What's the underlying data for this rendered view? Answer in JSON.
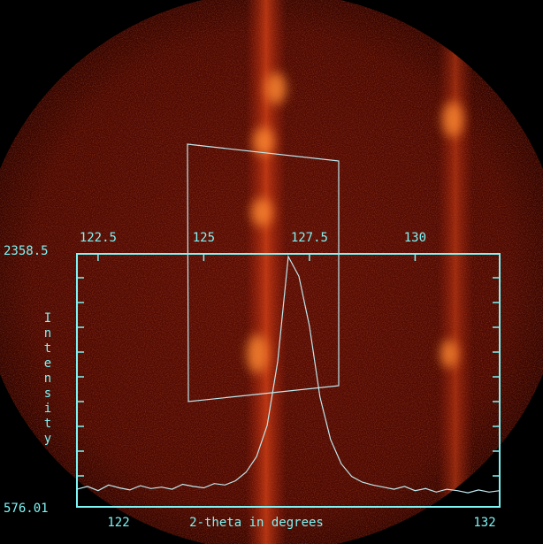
{
  "chart_data": {
    "type": "line",
    "x_label": "2-theta in degrees",
    "y_label": "Intensity",
    "xlim": [
      122,
      132
    ],
    "ylim": [
      576.01,
      2358.5
    ],
    "xticks": [
      122.5,
      125,
      127.5,
      130
    ],
    "color": "#bfe9ee",
    "x": [
      122,
      122.25,
      122.5,
      122.75,
      123,
      123.25,
      123.5,
      123.75,
      124,
      124.25,
      124.5,
      124.75,
      125,
      125.25,
      125.5,
      125.75,
      126,
      126.25,
      126.5,
      126.75,
      127,
      127.25,
      127.5,
      127.75,
      128,
      128.25,
      128.5,
      128.75,
      129,
      129.25,
      129.5,
      129.75,
      130,
      130.25,
      130.5,
      130.75,
      131,
      131.25,
      131.5,
      131.75,
      132
    ],
    "values": [
      700,
      720,
      690,
      730,
      710,
      695,
      725,
      705,
      715,
      700,
      735,
      720,
      710,
      740,
      730,
      760,
      820,
      930,
      1150,
      1600,
      2340,
      2200,
      1850,
      1350,
      1050,
      880,
      790,
      750,
      730,
      715,
      700,
      720,
      690,
      705,
      680,
      700,
      690,
      675,
      695,
      680,
      690
    ]
  }
}
